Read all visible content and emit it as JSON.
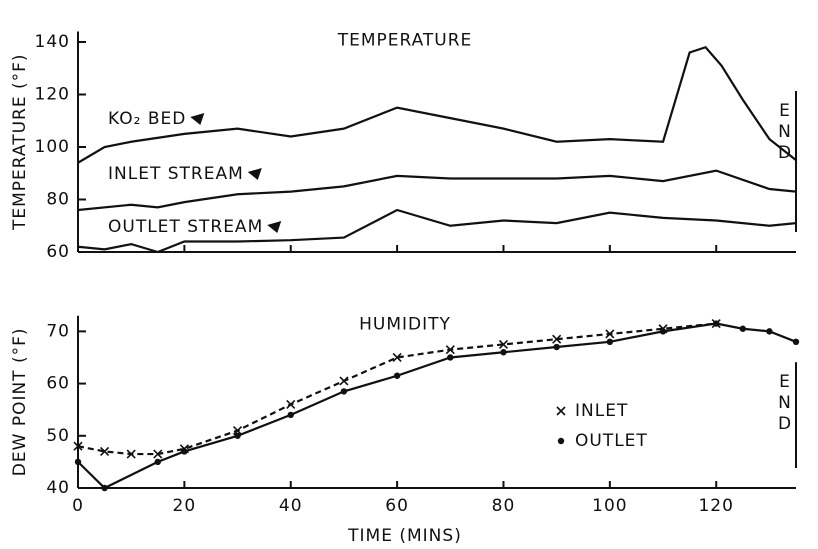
{
  "chart_data": [
    {
      "type": "line",
      "title": "TEMPERATURE",
      "y_label": "TEMPERATURE (°F)",
      "annotation": "END",
      "xlim": [
        0,
        135
      ],
      "xticks": [
        0,
        20,
        40,
        60,
        80,
        100,
        120
      ],
      "ylim": [
        60,
        144
      ],
      "yticks": [
        60,
        80,
        100,
        120,
        140
      ],
      "series": [
        {
          "name": "KO₂ BED",
          "color": "#111111",
          "dash": false,
          "x": [
            0,
            5,
            10,
            20,
            30,
            40,
            50,
            60,
            70,
            80,
            90,
            100,
            110,
            115,
            118,
            121,
            125,
            130,
            135
          ],
          "values": [
            94,
            100,
            102,
            105,
            107,
            104,
            107,
            115,
            111,
            107,
            102,
            103,
            102,
            136,
            138,
            131,
            118,
            103,
            95
          ]
        },
        {
          "name": "INLET STREAM",
          "color": "#111111",
          "dash": false,
          "x": [
            0,
            10,
            15,
            20,
            30,
            40,
            50,
            60,
            70,
            80,
            90,
            100,
            110,
            120,
            130,
            135
          ],
          "values": [
            76,
            78,
            77,
            79,
            82,
            83,
            85,
            89,
            88,
            88,
            88,
            89,
            87,
            91,
            84,
            83
          ]
        },
        {
          "name": "OUTLET STREAM",
          "color": "#111111",
          "dash": false,
          "x": [
            0,
            5,
            10,
            15,
            20,
            30,
            40,
            50,
            60,
            70,
            80,
            90,
            100,
            110,
            120,
            130,
            135
          ],
          "values": [
            62,
            61,
            63,
            60,
            64,
            64,
            64.5,
            65.5,
            76,
            70,
            72,
            71,
            75,
            73,
            72,
            70,
            71
          ]
        }
      ]
    },
    {
      "type": "line",
      "title": "HUMIDITY",
      "x_label": "TIME (MINS)",
      "y_label": "DEW POINT (°F)",
      "annotation": "END",
      "xlim": [
        0,
        135
      ],
      "xticks": [
        0,
        20,
        40,
        60,
        80,
        100,
        120
      ],
      "ylim": [
        40,
        73
      ],
      "yticks": [
        40,
        50,
        60,
        70
      ],
      "series": [
        {
          "name": "INLET",
          "color": "#111111",
          "dash": true,
          "marker": "x",
          "x": [
            0,
            5,
            10,
            15,
            20,
            30,
            40,
            50,
            60,
            70,
            80,
            90,
            100,
            110,
            120
          ],
          "values": [
            48,
            47,
            46.5,
            46.5,
            47.5,
            51,
            56,
            60.5,
            65,
            66.5,
            67.5,
            68.5,
            69.5,
            70.5,
            71.5
          ]
        },
        {
          "name": "OUTLET",
          "color": "#111111",
          "dash": false,
          "marker": "dot",
          "x": [
            0,
            5,
            15,
            20,
            30,
            40,
            50,
            60,
            70,
            80,
            90,
            100,
            110,
            120,
            125,
            130,
            135
          ],
          "values": [
            45,
            40,
            45,
            47,
            50,
            54,
            58.5,
            61.5,
            65,
            66,
            67,
            68,
            70,
            71.5,
            70.5,
            70,
            68
          ]
        }
      ]
    }
  ]
}
